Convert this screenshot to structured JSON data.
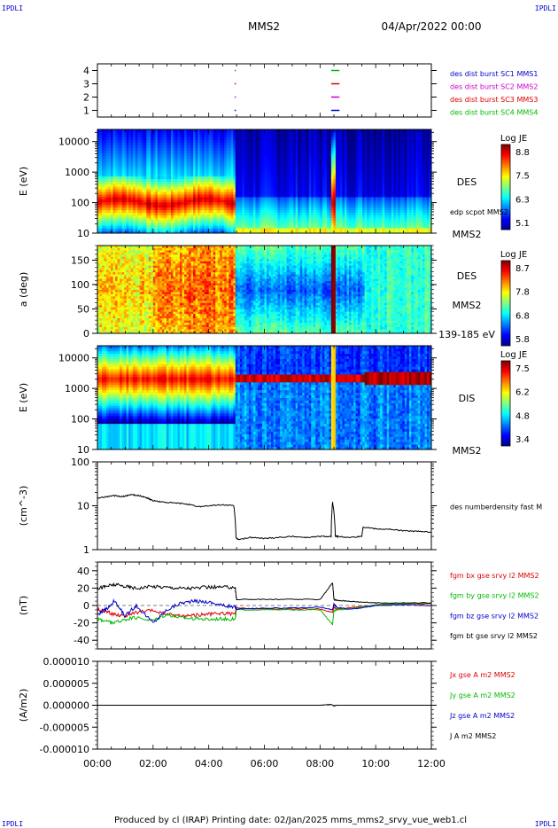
{
  "header": {
    "corner_tl": "IPDLI",
    "corner_tr": "IPDLI",
    "corner_bl": "IPDLI",
    "corner_br": "IPDLI",
    "spacecraft": "MMS2",
    "date": "04/Apr/2022 00:00"
  },
  "footer": {
    "text": "Produced by cl (IRAP)   Printing date: 02/Jan/2025   mms_mms2_srvy_vue_web1.cl"
  },
  "colors": {
    "blue": "#0000cc",
    "magenta": "#cc00cc",
    "red": "#dd0000",
    "green": "#00bb00",
    "black": "#000000"
  },
  "chart_data": [
    {
      "type": "scatter",
      "id": "burst",
      "ylim": [
        0.5,
        4.5
      ],
      "yticks": [
        "1",
        "2",
        "3",
        "4"
      ],
      "legend": [
        {
          "label": "des dist burst SC1 MMS1",
          "color": "#0000cc"
        },
        {
          "label": "des dist burst SC2 MMS2",
          "color": "#cc00cc"
        },
        {
          "label": "des dist burst SC3 MMS3",
          "color": "#dd0000"
        },
        {
          "label": "des dist burst SC4 MMS4",
          "color": "#00bb00"
        }
      ],
      "intervals": [
        {
          "sc": 4,
          "t0": 4.93,
          "t1": 4.96,
          "color": "#00bb00"
        },
        {
          "sc": 3,
          "t0": 4.93,
          "t1": 4.96,
          "color": "#dd0000"
        },
        {
          "sc": 2,
          "t0": 4.93,
          "t1": 4.96,
          "color": "#cc00cc"
        },
        {
          "sc": 1,
          "t0": 4.93,
          "t1": 4.96,
          "color": "#0000cc"
        },
        {
          "sc": 4,
          "t0": 8.4,
          "t1": 8.7,
          "color": "#00bb00"
        },
        {
          "sc": 3,
          "t0": 8.4,
          "t1": 8.7,
          "color": "#dd0000"
        },
        {
          "sc": 2,
          "t0": 8.4,
          "t1": 8.7,
          "color": "#cc00cc"
        },
        {
          "sc": 1,
          "t0": 8.4,
          "t1": 8.7,
          "color": "#0000cc"
        }
      ]
    },
    {
      "type": "heatmap",
      "id": "des-energy",
      "ylabel": "E (eV)",
      "yscale": "log",
      "ylim": [
        10,
        25000
      ],
      "yticks": [
        "10",
        "100",
        "1000",
        "10000"
      ],
      "label_right": "DES",
      "label_bottom": "MMS2",
      "overlay_label": "edp scpot MMS2",
      "colorbar": {
        "title": "Log JE",
        "ticks": [
          "8.8",
          "7.5",
          "6.3",
          "5.1"
        ],
        "range": [
          5.1,
          8.8
        ]
      }
    },
    {
      "type": "heatmap",
      "id": "des-pitch",
      "ylabel": "a (deg)",
      "ylim": [
        0,
        180
      ],
      "yticks": [
        "0",
        "50",
        "100",
        "150"
      ],
      "label_right": "DES",
      "label_mid": "MMS2",
      "label_bottom": "139-185 eV",
      "colorbar": {
        "title": "Log JE",
        "ticks": [
          "8.7",
          "7.8",
          "6.8",
          "5.8"
        ],
        "range": [
          5.8,
          8.7
        ]
      }
    },
    {
      "type": "heatmap",
      "id": "dis-energy",
      "ylabel": "E (eV)",
      "yscale": "log",
      "ylim": [
        10,
        25000
      ],
      "yticks": [
        "10",
        "100",
        "1000",
        "10000"
      ],
      "label_right": "DIS",
      "label_bottom": "MMS2",
      "colorbar": {
        "title": "Log JE",
        "ticks": [
          "7.5",
          "6.2",
          "4.8",
          "3.4"
        ],
        "range": [
          3.4,
          7.5
        ]
      }
    },
    {
      "type": "line",
      "id": "density",
      "ylabel": "(cm^-3)",
      "yscale": "log",
      "ylim": [
        1,
        100
      ],
      "yticks": [
        "1",
        "10",
        "100"
      ],
      "legend": [
        {
          "label": "des numberdensity fast M",
          "color": "#000000"
        }
      ],
      "series": [
        {
          "name": "des numberdensity fast M",
          "color": "#000000",
          "x": [
            0,
            0.3,
            0.6,
            0.9,
            1.2,
            1.5,
            1.8,
            2.0,
            2.4,
            2.8,
            3.2,
            3.6,
            4.0,
            4.5,
            4.9,
            4.98,
            5.1,
            5.5,
            6.0,
            6.5,
            7.0,
            7.5,
            8.0,
            8.4,
            8.45,
            8.55,
            8.6,
            8.65,
            9.0,
            9.5,
            9.55,
            10.0,
            10.5,
            11.0,
            11.5,
            12.0
          ],
          "y": [
            15,
            16,
            17,
            16,
            18,
            17,
            15,
            13,
            12,
            11.5,
            11,
            9.5,
            10,
            10.5,
            10,
            1.8,
            1.7,
            1.9,
            1.8,
            1.9,
            2.0,
            1.9,
            2.0,
            2.0,
            12,
            2.0,
            2.0,
            2.0,
            1.9,
            2.0,
            3.3,
            3.0,
            2.9,
            2.7,
            2.6,
            2.5
          ]
        }
      ]
    },
    {
      "type": "line",
      "id": "fgm",
      "ylabel": "(nT)",
      "ylim": [
        -50,
        50
      ],
      "yticks": [
        "-40",
        "-20",
        "0",
        "20",
        "40"
      ],
      "legend": [
        {
          "label": "fgm bx gse srvy l2 MMS2",
          "color": "#dd0000"
        },
        {
          "label": "fgm by gse srvy l2 MMS2",
          "color": "#00bb00"
        },
        {
          "label": "fgm bz gse srvy l2 MMS2",
          "color": "#0000cc"
        },
        {
          "label": "fgm bt gse srvy l2 MMS2",
          "color": "#000000"
        }
      ],
      "series": [
        {
          "name": "fgm bx gse srvy l2 MMS2",
          "color": "#dd0000",
          "x": [
            0,
            0.3,
            0.6,
            1.0,
            1.4,
            2.0,
            2.5,
            3.0,
            3.5,
            4.0,
            4.5,
            4.95,
            5.0,
            6.0,
            7.0,
            8.0,
            8.45,
            8.5,
            8.6,
            9.0,
            9.5,
            10.0,
            11.0,
            12.0
          ],
          "y": [
            -5,
            -7,
            -10,
            -12,
            -8,
            -6,
            -10,
            -12,
            -11,
            -10,
            -9,
            -10,
            -3,
            -4,
            -4,
            -4,
            -8,
            -2,
            -4,
            -3,
            -1,
            0,
            1,
            2
          ]
        },
        {
          "name": "fgm by gse srvy l2 MMS2",
          "color": "#00bb00",
          "x": [
            0,
            0.3,
            0.6,
            1.0,
            1.4,
            2.0,
            2.5,
            3.0,
            3.5,
            4.0,
            4.5,
            4.95,
            5.0,
            6.0,
            7.0,
            8.0,
            8.45,
            8.5,
            8.6,
            9.0,
            9.5,
            10.0,
            11.0,
            12.0
          ],
          "y": [
            -15,
            -18,
            -20,
            -16,
            -14,
            -17,
            -10,
            -14,
            -15,
            -16,
            -15,
            -16,
            -5,
            -5,
            -5,
            -5,
            -22,
            -6,
            -5,
            -4,
            -2,
            1,
            2,
            3
          ]
        },
        {
          "name": "fgm bz gse srvy l2 MMS2",
          "color": "#0000cc",
          "x": [
            0,
            0.3,
            0.6,
            1.0,
            1.4,
            2.0,
            2.5,
            3.0,
            3.5,
            4.0,
            4.5,
            4.95,
            5.0,
            6.0,
            7.0,
            8.0,
            8.45,
            8.5,
            8.6,
            9.0,
            9.5,
            10.0,
            11.0,
            12.0
          ],
          "y": [
            -10,
            -5,
            5,
            -12,
            0,
            -20,
            -5,
            3,
            5,
            4,
            0,
            -2,
            -4,
            -3,
            -3,
            -2,
            -5,
            2,
            -2,
            -4,
            -3,
            0,
            1,
            0
          ]
        },
        {
          "name": "fgm bt gse srvy l2 MMS2",
          "color": "#000000",
          "x": [
            0,
            0.3,
            0.6,
            1.0,
            1.4,
            2.0,
            2.5,
            3.0,
            3.5,
            4.0,
            4.5,
            4.95,
            5.0,
            6.0,
            7.0,
            8.0,
            8.45,
            8.5,
            8.6,
            9.0,
            9.5,
            10.0,
            11.0,
            12.0
          ],
          "y": [
            20,
            22,
            24,
            22,
            20,
            22,
            21,
            20,
            20,
            21,
            21,
            21,
            7,
            7,
            7,
            7,
            26,
            7,
            6,
            5,
            4,
            3,
            3,
            3
          ]
        }
      ]
    },
    {
      "type": "line",
      "id": "current",
      "ylabel": "(A/m2)",
      "ylim": [
        -1e-05,
        1e-05
      ],
      "yticks": [
        "-0.000010",
        "-0.000005",
        "0.000000",
        "0.000005",
        "0.000010"
      ],
      "legend": [
        {
          "label": "Jx gse A m2 MMS2",
          "color": "#dd0000"
        },
        {
          "label": "Jy gse A m2 MMS2",
          "color": "#00bb00"
        },
        {
          "label": "Jz gse A m2 MMS2",
          "color": "#0000cc"
        },
        {
          "label": "J A m2 MMS2",
          "color": "#000000"
        }
      ],
      "series": [
        {
          "name": "J A m2 MMS2",
          "color": "#000000",
          "x": [
            0,
            2,
            4,
            6,
            8,
            8.4,
            8.5,
            8.6,
            10,
            12
          ],
          "y": [
            0,
            0,
            0,
            0,
            0,
            2e-07,
            -2e-07,
            0,
            0,
            0
          ]
        }
      ]
    }
  ],
  "time_axis": {
    "xlim": [
      0,
      12
    ],
    "ticks": [
      "00:00",
      "02:00",
      "04:00",
      "06:00",
      "08:00",
      "10:00",
      "12:00"
    ]
  }
}
